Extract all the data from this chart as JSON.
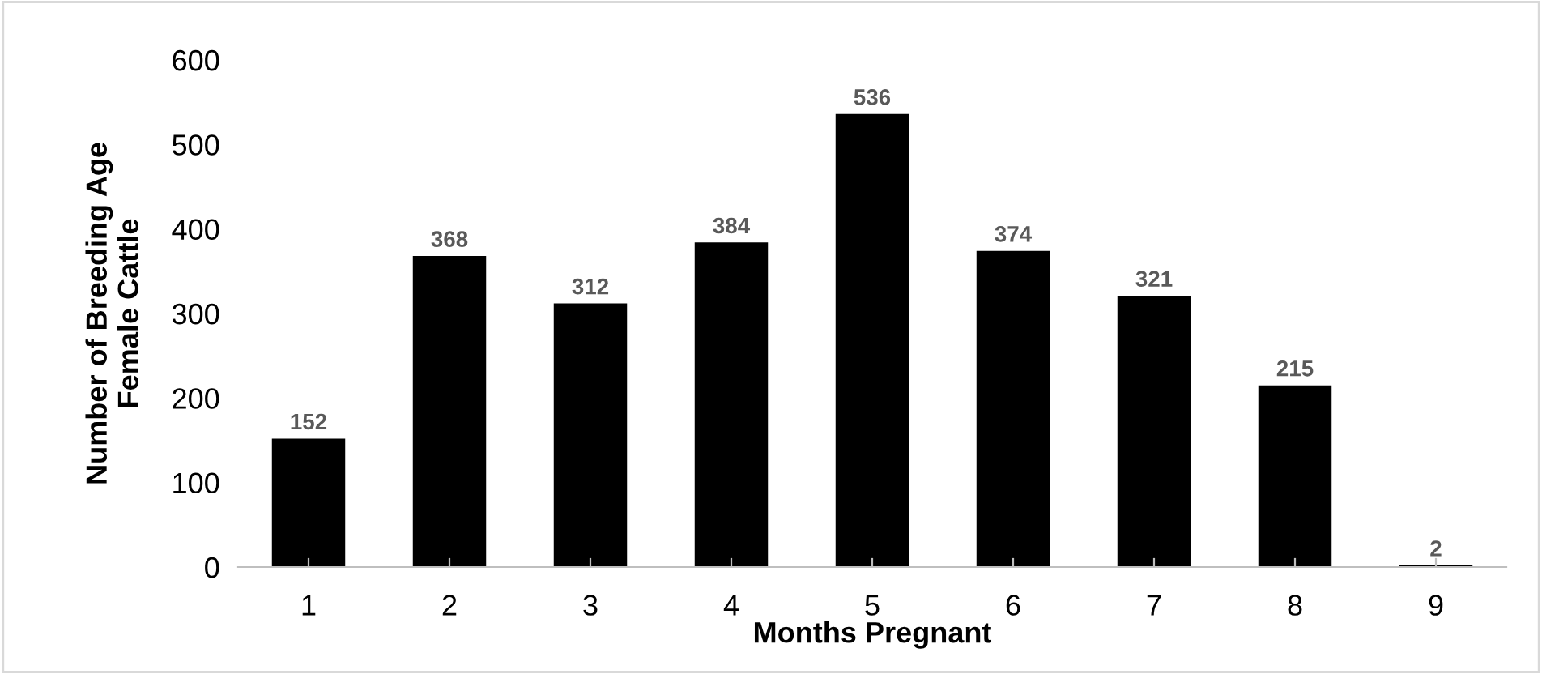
{
  "chart_data": {
    "type": "bar",
    "xlabel": "Months Pregnant",
    "ylabel": "Number of Breeding Age\nFemale Cattle",
    "categories": [
      "1",
      "2",
      "3",
      "4",
      "5",
      "6",
      "7",
      "8",
      "9"
    ],
    "values": [
      152,
      368,
      312,
      384,
      536,
      374,
      321,
      215,
      2
    ],
    "color": "#000000",
    "ylim": [
      0,
      600
    ],
    "yticks": [
      0,
      100,
      200,
      300,
      400,
      500,
      600
    ],
    "grid": false,
    "data_labels": true
  }
}
